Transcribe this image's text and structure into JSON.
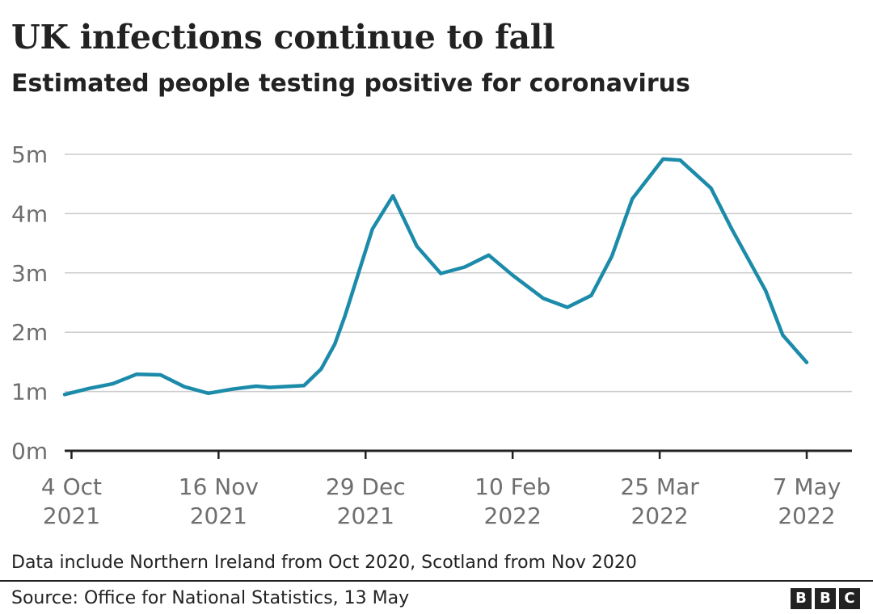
{
  "header": {
    "title": "UK infections continue to fall",
    "subtitle": "Estimated people testing positive for coronavirus"
  },
  "chart_data": {
    "type": "line",
    "title": "UK infections continue to fall",
    "subtitle": "Estimated people testing positive for coronavirus",
    "xlabel": "",
    "ylabel": "",
    "ylim": [
      0,
      5000000
    ],
    "grid": true,
    "y_ticks": [
      {
        "value": 0,
        "label": "0m"
      },
      {
        "value": 1000000,
        "label": "1m"
      },
      {
        "value": 2000000,
        "label": "2m"
      },
      {
        "value": 3000000,
        "label": "3m"
      },
      {
        "value": 4000000,
        "label": "4m"
      },
      {
        "value": 5000000,
        "label": "5m"
      }
    ],
    "x_ticks": [
      {
        "date": "2021-10-04",
        "line1": "4 Oct",
        "line2": "2021"
      },
      {
        "date": "2021-11-16",
        "line1": "16 Nov",
        "line2": "2021"
      },
      {
        "date": "2021-12-29",
        "line1": "29 Dec",
        "line2": "2021"
      },
      {
        "date": "2022-02-10",
        "line1": "10 Feb",
        "line2": "2022"
      },
      {
        "date": "2022-03-25",
        "line1": "25 Mar",
        "line2": "2022"
      },
      {
        "date": "2022-05-07",
        "line1": "7 May",
        "line2": "2022"
      }
    ],
    "xlim": [
      "2021-10-02",
      "2022-05-07"
    ],
    "series": [
      {
        "color": "#1c8baa",
        "points": [
          {
            "x": "2021-10-02",
            "y": 950000
          },
          {
            "x": "2021-10-09",
            "y": 1050000
          },
          {
            "x": "2021-10-16",
            "y": 1130000
          },
          {
            "x": "2021-10-23",
            "y": 1290000
          },
          {
            "x": "2021-10-30",
            "y": 1280000
          },
          {
            "x": "2021-11-06",
            "y": 1080000
          },
          {
            "x": "2021-11-13",
            "y": 970000
          },
          {
            "x": "2021-11-20",
            "y": 1040000
          },
          {
            "x": "2021-11-27",
            "y": 1090000
          },
          {
            "x": "2021-12-01",
            "y": 1070000
          },
          {
            "x": "2021-12-11",
            "y": 1100000
          },
          {
            "x": "2021-12-16",
            "y": 1380000
          },
          {
            "x": "2021-12-20",
            "y": 1800000
          },
          {
            "x": "2021-12-23",
            "y": 2280000
          },
          {
            "x": "2021-12-31",
            "y": 3740000
          },
          {
            "x": "2022-01-06",
            "y": 4300000
          },
          {
            "x": "2022-01-13",
            "y": 3450000
          },
          {
            "x": "2022-01-20",
            "y": 2990000
          },
          {
            "x": "2022-01-27",
            "y": 3100000
          },
          {
            "x": "2022-02-03",
            "y": 3300000
          },
          {
            "x": "2022-02-10",
            "y": 2960000
          },
          {
            "x": "2022-02-19",
            "y": 2570000
          },
          {
            "x": "2022-02-26",
            "y": 2420000
          },
          {
            "x": "2022-03-05",
            "y": 2620000
          },
          {
            "x": "2022-03-11",
            "y": 3280000
          },
          {
            "x": "2022-03-17",
            "y": 4250000
          },
          {
            "x": "2022-03-26",
            "y": 4920000
          },
          {
            "x": "2022-03-31",
            "y": 4900000
          },
          {
            "x": "2022-04-09",
            "y": 4430000
          },
          {
            "x": "2022-04-15",
            "y": 3750000
          },
          {
            "x": "2022-04-25",
            "y": 2700000
          },
          {
            "x": "2022-04-30",
            "y": 1950000
          },
          {
            "x": "2022-05-07",
            "y": 1490000
          }
        ]
      }
    ]
  },
  "footer": {
    "note": "Data include Northern Ireland from Oct 2020, Scotland from Nov 2020",
    "source": "Source: Office for National Statistics, 13 May",
    "logo": [
      "B",
      "B",
      "C"
    ]
  }
}
